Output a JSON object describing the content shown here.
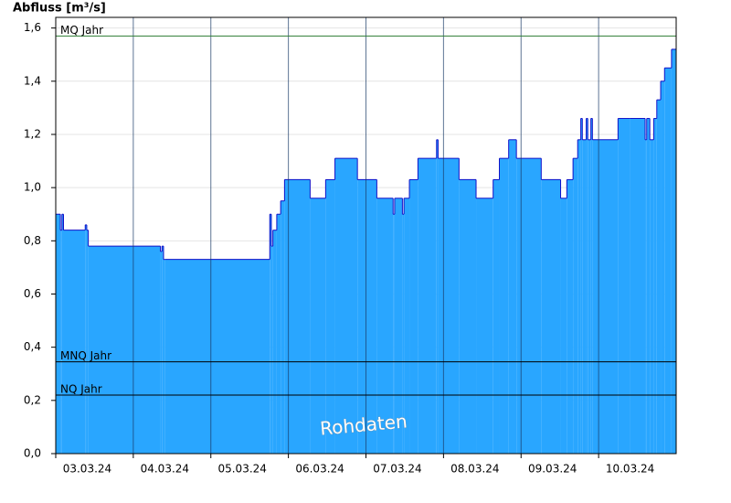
{
  "chart_data": {
    "type": "step-area",
    "y_label": "Abfluss [m³/s]",
    "annotation": "Rohdaten",
    "color": "#29a6ff",
    "line_color": "#1010c8",
    "grid": true,
    "xlim": [
      0,
      8
    ],
    "xticks": [
      {
        "value": 0,
        "label": "03.03.24"
      },
      {
        "value": 1,
        "label": "04.03.24"
      },
      {
        "value": 2,
        "label": "05.03.24"
      },
      {
        "value": 3,
        "label": "06.03.24"
      },
      {
        "value": 4,
        "label": "07.03.24"
      },
      {
        "value": 5,
        "label": "08.03.24"
      },
      {
        "value": 6,
        "label": "09.03.24"
      },
      {
        "value": 7,
        "label": "10.03.24"
      }
    ],
    "ylim": [
      0,
      1.64
    ],
    "yticks": [
      {
        "value": 0,
        "label": "0,0"
      },
      {
        "value": 0.2,
        "label": "0,2"
      },
      {
        "value": 0.4,
        "label": "0,4"
      },
      {
        "value": 0.6,
        "label": "0,6"
      },
      {
        "value": 0.8,
        "label": "0,8"
      },
      {
        "value": 1.0,
        "label": "1,0"
      },
      {
        "value": 1.2,
        "label": "1,2"
      },
      {
        "value": 1.4,
        "label": "1,4"
      },
      {
        "value": 1.6,
        "label": "1,6"
      }
    ],
    "x": [
      0,
      0.06,
      0.08,
      0.1,
      0.38,
      0.4,
      0.42,
      1.35,
      1.37,
      1.39,
      1.41,
      2.76,
      2.78,
      2.8,
      2.85,
      2.9,
      2.95,
      3.28,
      3.48,
      3.6,
      3.89,
      4.14,
      4.35,
      4.37,
      4.47,
      4.49,
      4.56,
      4.67,
      4.91,
      4.93,
      5.2,
      5.42,
      5.64,
      5.72,
      5.84,
      5.94,
      6.26,
      6.51,
      6.59,
      6.67,
      6.73,
      6.77,
      6.79,
      6.84,
      6.86,
      6.9,
      6.92,
      7.25,
      7.41,
      7.6,
      7.62,
      7.66,
      7.71,
      7.75,
      7.8,
      7.85,
      7.94
    ],
    "values": [
      0.9,
      0.84,
      0.9,
      0.84,
      0.86,
      0.84,
      0.78,
      0.76,
      0.78,
      0.73,
      0.73,
      0.9,
      0.78,
      0.84,
      0.9,
      0.95,
      1.03,
      0.96,
      1.03,
      1.11,
      1.03,
      0.96,
      0.9,
      0.96,
      0.9,
      0.96,
      1.03,
      1.11,
      1.18,
      1.11,
      1.03,
      0.96,
      1.03,
      1.11,
      1.18,
      1.11,
      1.03,
      0.96,
      1.03,
      1.11,
      1.18,
      1.26,
      1.18,
      1.26,
      1.18,
      1.26,
      1.18,
      1.26,
      1.26,
      1.18,
      1.26,
      1.18,
      1.26,
      1.33,
      1.4,
      1.45,
      1.52
    ],
    "reference_lines": [
      {
        "label": "MQ Jahr",
        "value": 1.57,
        "color": "#2e7d32"
      },
      {
        "label": "MNQ Jahr",
        "value": 0.345,
        "color": "#000000"
      },
      {
        "label": "NQ Jahr",
        "value": 0.22,
        "color": "#000000"
      }
    ]
  }
}
